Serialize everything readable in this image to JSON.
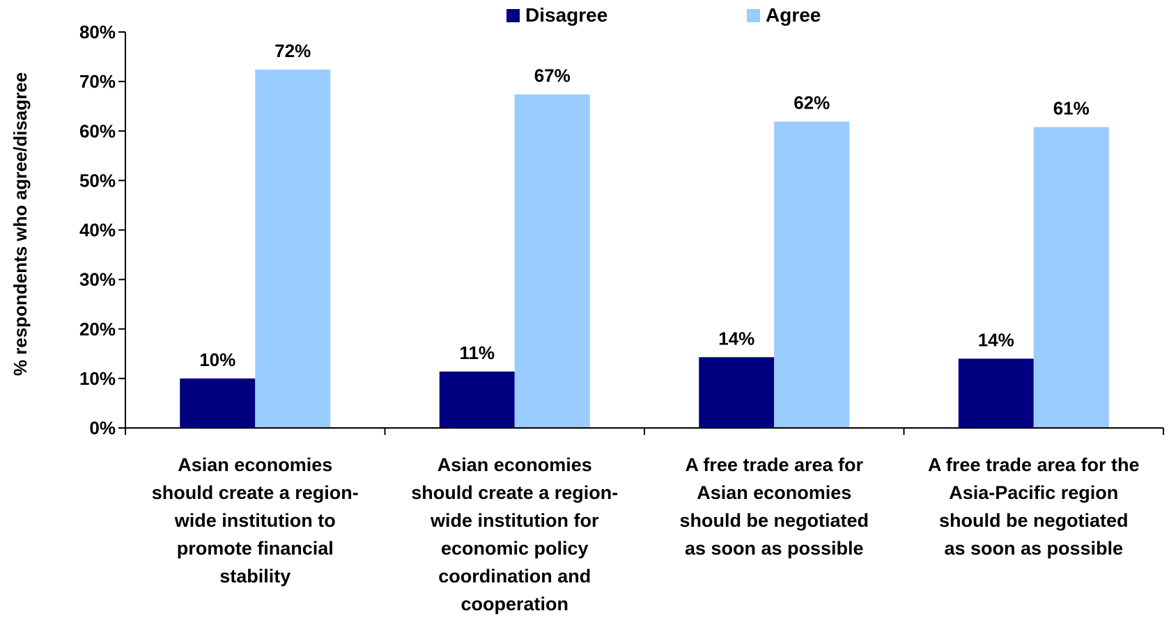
{
  "chart_data": {
    "type": "bar",
    "title": "",
    "xlabel": "",
    "ylabel": "% respondents who agree/disagree",
    "ylim": [
      0,
      80
    ],
    "ytick_step": 10,
    "ytick_suffix": "%",
    "grid": false,
    "legend": "top-center",
    "categories": [
      "Asian economies should create a region-wide institution to promote financial stability",
      "Asian economies should create a region-wide institution for economic policy coordination and cooperation",
      "A free trade area for Asian economies should be negotiated as soon as possible",
      "A free trade area for the Asia-Pacific region should be negotiated as soon as possible"
    ],
    "category_lines": [
      [
        "Asian economies",
        "should create a region-",
        "wide institution to",
        "promote financial",
        "stability"
      ],
      [
        "Asian economies",
        "should create a region-",
        "wide institution for",
        "economic policy",
        "coordination and",
        "cooperation"
      ],
      [
        "A free trade area for",
        "Asian economies",
        "should be negotiated",
        "as soon as possible"
      ],
      [
        "A free trade area for the",
        "Asia-Pacific region",
        "should be negotiated",
        "as soon as possible"
      ]
    ],
    "series": [
      {
        "name": "Disagree",
        "color": "#000080",
        "values": [
          10,
          11.4,
          14.3,
          14
        ],
        "labels": [
          "10%",
          "11%",
          "14%",
          "14%"
        ]
      },
      {
        "name": "Agree",
        "color": "#99CCFF",
        "values": [
          72.4,
          67.4,
          61.9,
          60.8
        ],
        "labels": [
          "72%",
          "67%",
          "62%",
          "61%"
        ]
      }
    ]
  }
}
